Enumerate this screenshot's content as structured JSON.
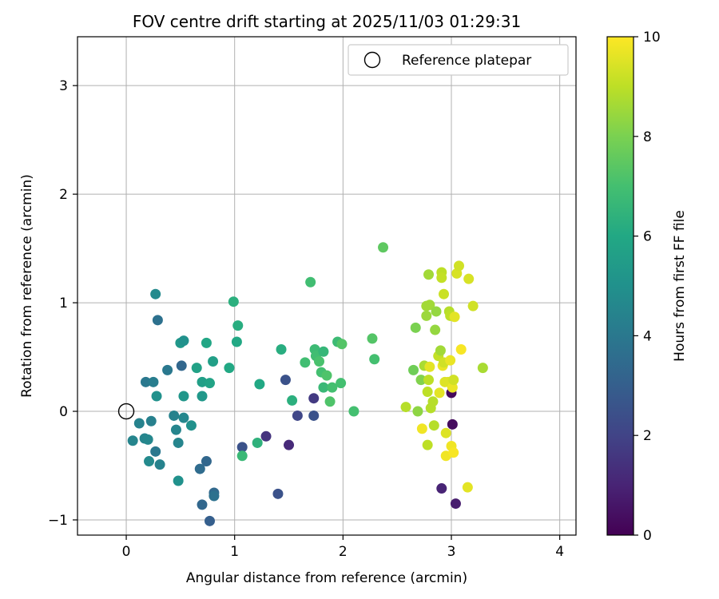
{
  "chart_data": {
    "type": "scatter",
    "title": "FOV centre drift starting at 2025/11/03 01:29:31",
    "xlabel": "Angular distance from reference (arcmin)",
    "ylabel": "Rotation from reference (arcmin)",
    "xlim": [
      -0.45,
      4.15
    ],
    "ylim": [
      -1.14,
      3.45
    ],
    "xticks": [
      0,
      1,
      2,
      3,
      4
    ],
    "xtick_labels": [
      "0",
      "1",
      "2",
      "3",
      "4"
    ],
    "yticks": [
      -1,
      0,
      1,
      2,
      3
    ],
    "yticks_labels": [
      "−1",
      "0",
      "1",
      "2",
      "3"
    ],
    "grid": true,
    "legend": {
      "position": "top-right",
      "entries": [
        "Reference platepar"
      ]
    },
    "reference_point": {
      "x": 0.0,
      "y": 0.0
    },
    "colorbar": {
      "label": "Hours from first FF file",
      "colormap": "viridis",
      "range": [
        0,
        10
      ],
      "ticks": [
        0,
        2,
        4,
        6,
        8,
        10
      ],
      "tick_labels": [
        "0",
        "2",
        "4",
        "6",
        "8",
        "10"
      ]
    },
    "points": [
      {
        "x": 0.06,
        "y": -0.27,
        "t": 4.5
      },
      {
        "x": 0.12,
        "y": -0.11,
        "t": 4.4
      },
      {
        "x": 0.17,
        "y": -0.25,
        "t": 4.5
      },
      {
        "x": 0.18,
        "y": 0.27,
        "t": 4.0
      },
      {
        "x": 0.2,
        "y": -0.26,
        "t": 4.6
      },
      {
        "x": 0.21,
        "y": -0.46,
        "t": 4.7
      },
      {
        "x": 0.23,
        "y": -0.09,
        "t": 4.3
      },
      {
        "x": 0.25,
        "y": 0.27,
        "t": 4.2
      },
      {
        "x": 0.27,
        "y": -0.37,
        "t": 4.0
      },
      {
        "x": 0.27,
        "y": 1.08,
        "t": 4.7
      },
      {
        "x": 0.28,
        "y": 0.14,
        "t": 5.0
      },
      {
        "x": 0.29,
        "y": 0.84,
        "t": 3.7
      },
      {
        "x": 0.31,
        "y": -0.49,
        "t": 4.4
      },
      {
        "x": 0.38,
        "y": 0.38,
        "t": 4.0
      },
      {
        "x": 0.44,
        "y": -0.04,
        "t": 4.4
      },
      {
        "x": 0.46,
        "y": -0.17,
        "t": 4.5
      },
      {
        "x": 0.48,
        "y": -0.29,
        "t": 4.5
      },
      {
        "x": 0.48,
        "y": -0.64,
        "t": 5.0
      },
      {
        "x": 0.5,
        "y": 0.63,
        "t": 5.3
      },
      {
        "x": 0.51,
        "y": 0.42,
        "t": 3.3
      },
      {
        "x": 0.53,
        "y": 0.65,
        "t": 5.0
      },
      {
        "x": 0.53,
        "y": -0.06,
        "t": 4.6
      },
      {
        "x": 0.53,
        "y": 0.14,
        "t": 5.2
      },
      {
        "x": 0.6,
        "y": -0.13,
        "t": 5.0
      },
      {
        "x": 0.65,
        "y": 0.4,
        "t": 5.7
      },
      {
        "x": 0.68,
        "y": -0.53,
        "t": 3.5
      },
      {
        "x": 0.7,
        "y": 0.14,
        "t": 5.3
      },
      {
        "x": 0.7,
        "y": -0.86,
        "t": 3.3
      },
      {
        "x": 0.7,
        "y": 0.27,
        "t": 5.6
      },
      {
        "x": 0.74,
        "y": 0.63,
        "t": 5.9
      },
      {
        "x": 0.74,
        "y": -0.46,
        "t": 3.3
      },
      {
        "x": 0.77,
        "y": 0.26,
        "t": 5.8
      },
      {
        "x": 0.77,
        "y": -1.01,
        "t": 3.0
      },
      {
        "x": 0.8,
        "y": 0.46,
        "t": 5.6
      },
      {
        "x": 0.81,
        "y": -0.75,
        "t": 3.4
      },
      {
        "x": 0.81,
        "y": -0.78,
        "t": 3.7
      },
      {
        "x": 0.95,
        "y": 0.4,
        "t": 6.0
      },
      {
        "x": 0.99,
        "y": 1.01,
        "t": 6.3
      },
      {
        "x": 1.02,
        "y": 0.64,
        "t": 6.0
      },
      {
        "x": 1.03,
        "y": 0.79,
        "t": 6.2
      },
      {
        "x": 1.07,
        "y": -0.33,
        "t": 2.5
      },
      {
        "x": 1.07,
        "y": -0.41,
        "t": 6.7
      },
      {
        "x": 1.21,
        "y": -0.29,
        "t": 6.4
      },
      {
        "x": 1.23,
        "y": 0.25,
        "t": 6.0
      },
      {
        "x": 1.29,
        "y": -0.23,
        "t": 1.5
      },
      {
        "x": 1.4,
        "y": -0.76,
        "t": 2.5
      },
      {
        "x": 1.43,
        "y": 0.57,
        "t": 6.2
      },
      {
        "x": 1.47,
        "y": 0.29,
        "t": 2.5
      },
      {
        "x": 1.5,
        "y": -0.31,
        "t": 1.2
      },
      {
        "x": 1.53,
        "y": 0.1,
        "t": 6.3
      },
      {
        "x": 1.58,
        "y": -0.04,
        "t": 2.1
      },
      {
        "x": 1.65,
        "y": 0.45,
        "t": 6.9
      },
      {
        "x": 1.7,
        "y": 1.19,
        "t": 6.9
      },
      {
        "x": 1.73,
        "y": 0.12,
        "t": 1.7
      },
      {
        "x": 1.73,
        "y": -0.04,
        "t": 2.5
      },
      {
        "x": 1.74,
        "y": 0.57,
        "t": 6.8
      },
      {
        "x": 1.75,
        "y": 0.51,
        "t": 6.9
      },
      {
        "x": 1.78,
        "y": 0.46,
        "t": 7.1
      },
      {
        "x": 1.8,
        "y": 0.36,
        "t": 7.0
      },
      {
        "x": 1.82,
        "y": 0.22,
        "t": 6.7
      },
      {
        "x": 1.82,
        "y": 0.55,
        "t": 6.6
      },
      {
        "x": 1.85,
        "y": 0.33,
        "t": 7.2
      },
      {
        "x": 1.88,
        "y": 0.09,
        "t": 7.2
      },
      {
        "x": 1.9,
        "y": 0.22,
        "t": 7.0
      },
      {
        "x": 1.95,
        "y": 0.64,
        "t": 6.8
      },
      {
        "x": 1.98,
        "y": 0.26,
        "t": 7.0
      },
      {
        "x": 1.99,
        "y": 0.62,
        "t": 7.3
      },
      {
        "x": 2.1,
        "y": 0.0,
        "t": 7.0
      },
      {
        "x": 2.27,
        "y": 0.67,
        "t": 7.3
      },
      {
        "x": 2.29,
        "y": 0.48,
        "t": 7.0
      },
      {
        "x": 2.37,
        "y": 1.51,
        "t": 7.5
      },
      {
        "x": 2.58,
        "y": 0.04,
        "t": 8.9
      },
      {
        "x": 2.65,
        "y": 0.38,
        "t": 7.8
      },
      {
        "x": 2.67,
        "y": 0.77,
        "t": 8.0
      },
      {
        "x": 2.69,
        "y": 0.0,
        "t": 8.3
      },
      {
        "x": 2.72,
        "y": 0.29,
        "t": 8.1
      },
      {
        "x": 2.73,
        "y": -0.16,
        "t": 9.8
      },
      {
        "x": 2.75,
        "y": 0.42,
        "t": 8.7
      },
      {
        "x": 2.77,
        "y": 0.97,
        "t": 8.6
      },
      {
        "x": 2.77,
        "y": 0.88,
        "t": 8.5
      },
      {
        "x": 2.78,
        "y": 0.18,
        "t": 9.0
      },
      {
        "x": 2.78,
        "y": -0.31,
        "t": 9.0
      },
      {
        "x": 2.79,
        "y": 0.29,
        "t": 9.0
      },
      {
        "x": 2.79,
        "y": 1.26,
        "t": 8.6
      },
      {
        "x": 2.8,
        "y": 0.41,
        "t": 9.6
      },
      {
        "x": 2.8,
        "y": 0.98,
        "t": 8.6
      },
      {
        "x": 2.81,
        "y": 0.03,
        "t": 8.9
      },
      {
        "x": 2.83,
        "y": 0.09,
        "t": 8.9
      },
      {
        "x": 2.84,
        "y": -0.13,
        "t": 8.9
      },
      {
        "x": 2.85,
        "y": 0.75,
        "t": 8.4
      },
      {
        "x": 2.86,
        "y": 0.92,
        "t": 8.4
      },
      {
        "x": 2.88,
        "y": 0.51,
        "t": 9.1
      },
      {
        "x": 2.89,
        "y": 0.17,
        "t": 9.6
      },
      {
        "x": 2.9,
        "y": 0.56,
        "t": 8.6
      },
      {
        "x": 2.91,
        "y": 1.28,
        "t": 9.0
      },
      {
        "x": 2.91,
        "y": 1.23,
        "t": 9.1
      },
      {
        "x": 2.91,
        "y": -0.71,
        "t": 1.0
      },
      {
        "x": 2.92,
        "y": 0.42,
        "t": 9.7
      },
      {
        "x": 2.93,
        "y": 0.45,
        "t": 9.3
      },
      {
        "x": 2.93,
        "y": 1.08,
        "t": 9.2
      },
      {
        "x": 2.94,
        "y": 0.27,
        "t": 9.5
      },
      {
        "x": 2.95,
        "y": -0.2,
        "t": 9.5
      },
      {
        "x": 2.95,
        "y": -0.41,
        "t": 9.8
      },
      {
        "x": 2.97,
        "y": 0.27,
        "t": 9.5
      },
      {
        "x": 2.98,
        "y": 0.92,
        "t": 8.9
      },
      {
        "x": 2.99,
        "y": 0.88,
        "t": 9.0
      },
      {
        "x": 2.99,
        "y": 0.47,
        "t": 9.7
      },
      {
        "x": 3.0,
        "y": 0.17,
        "t": 0.2
      },
      {
        "x": 3.0,
        "y": -0.32,
        "t": 9.8
      },
      {
        "x": 3.01,
        "y": -0.12,
        "t": 0.3
      },
      {
        "x": 3.01,
        "y": 0.22,
        "t": 9.7
      },
      {
        "x": 3.02,
        "y": 0.29,
        "t": 9.3
      },
      {
        "x": 3.02,
        "y": -0.38,
        "t": 9.9
      },
      {
        "x": 3.03,
        "y": 0.87,
        "t": 9.6
      },
      {
        "x": 3.04,
        "y": -0.85,
        "t": 0.8
      },
      {
        "x": 3.05,
        "y": 1.27,
        "t": 9.4
      },
      {
        "x": 3.07,
        "y": 1.34,
        "t": 9.3
      },
      {
        "x": 3.09,
        "y": 0.57,
        "t": 9.9
      },
      {
        "x": 3.15,
        "y": -0.7,
        "t": 9.6
      },
      {
        "x": 3.16,
        "y": 1.22,
        "t": 9.4
      },
      {
        "x": 3.2,
        "y": 0.97,
        "t": 9.3
      },
      {
        "x": 3.29,
        "y": 0.4,
        "t": 8.7
      }
    ]
  }
}
